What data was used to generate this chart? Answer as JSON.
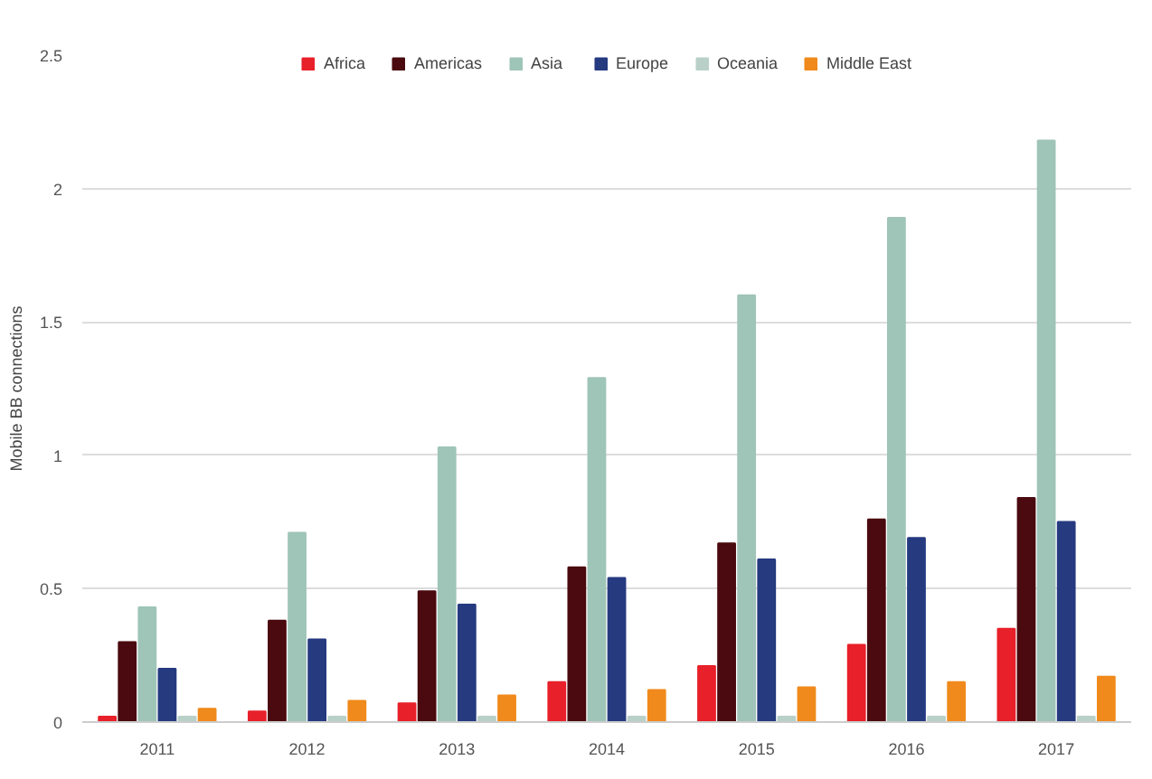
{
  "chart_data": {
    "type": "bar",
    "ylabel": "Mobile BB connections",
    "categories": [
      "2011",
      "2012",
      "2013",
      "2014",
      "2015",
      "2016",
      "2017"
    ],
    "series": [
      {
        "name": "Africa",
        "color": "#e8202a",
        "values": [
          0.02,
          0.04,
          0.07,
          0.15,
          0.21,
          0.29,
          0.35
        ]
      },
      {
        "name": "Americas",
        "color": "#4a0a0f",
        "values": [
          0.3,
          0.38,
          0.49,
          0.58,
          0.67,
          0.76,
          0.84
        ]
      },
      {
        "name": "Asia",
        "color": "#9fc4b8",
        "values": [
          0.43,
          0.71,
          1.03,
          1.29,
          1.6,
          1.89,
          2.18
        ]
      },
      {
        "name": "Europe",
        "color": "#263a80",
        "values": [
          0.2,
          0.31,
          0.44,
          0.54,
          0.61,
          0.69,
          0.75
        ]
      },
      {
        "name": "Oceania",
        "color": "#b8d0c8",
        "values": [
          0.02,
          0.02,
          0.02,
          0.02,
          0.02,
          0.02,
          0.02
        ]
      },
      {
        "name": "Middle East",
        "color": "#f08a1c",
        "values": [
          0.05,
          0.08,
          0.1,
          0.12,
          0.13,
          0.15,
          0.17
        ]
      }
    ],
    "ylim": [
      0,
      2.5
    ],
    "yticks": [
      0,
      0.5,
      1,
      1.5,
      2,
      2.5
    ],
    "grid": "y",
    "legend": "top"
  }
}
